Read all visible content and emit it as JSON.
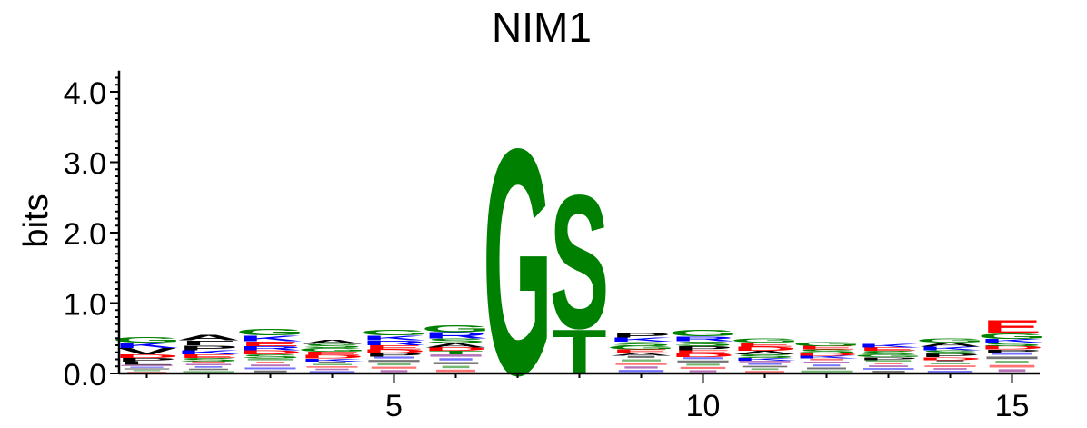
{
  "chart_data": {
    "type": "sequence-logo",
    "title": "NIM1",
    "ylabel": "bits",
    "xlabel": "",
    "ylim": [
      0,
      4.3
    ],
    "ytick_labels": [
      "0.0",
      "1.0",
      "2.0",
      "3.0",
      "4.0"
    ],
    "yticks": [
      0,
      1,
      2,
      3,
      4
    ],
    "xtick_labels": [
      "5",
      "10",
      "15"
    ],
    "xticks": [
      5,
      10,
      15
    ],
    "positions": [
      1,
      2,
      3,
      4,
      5,
      6,
      7,
      8,
      9,
      10,
      11,
      12,
      13,
      14,
      15
    ],
    "colors": {
      "G": "#008000",
      "S": "#008000",
      "T": "#008000",
      "C": "#008000",
      "Y": "#008000",
      "N": "#800080",
      "Q": "#800080",
      "K": "#0000ff",
      "R": "#0000ff",
      "H": "#0000ff",
      "D": "#ff0000",
      "E": "#ff0000",
      "A": "#000000",
      "V": "#000000",
      "L": "#000000",
      "I": "#000000",
      "P": "#000000",
      "F": "#000000",
      "M": "#000000",
      "W": "#000000"
    },
    "columns": [
      {
        "position": 1,
        "total_bits": 0.52,
        "letters": [
          {
            "letter": "L",
            "bits": 0.05
          },
          {
            "letter": "P",
            "bits": 0.05
          },
          {
            "letter": "D",
            "bits": 0.05
          },
          {
            "letter": "V",
            "bits": 0.09
          },
          {
            "letter": "K",
            "bits": 0.08
          },
          {
            "letter": "G",
            "bits": 0.08
          }
        ]
      },
      {
        "position": 2,
        "total_bits": 0.55,
        "letters": [
          {
            "letter": "S",
            "bits": 0.05
          },
          {
            "letter": "E",
            "bits": 0.05
          },
          {
            "letter": "K",
            "bits": 0.06
          },
          {
            "letter": "P",
            "bits": 0.07
          },
          {
            "letter": "F",
            "bits": 0.07
          },
          {
            "letter": "A",
            "bits": 0.08
          }
        ]
      },
      {
        "position": 3,
        "total_bits": 0.63,
        "letters": [
          {
            "letter": "S",
            "bits": 0.06
          },
          {
            "letter": "D",
            "bits": 0.06
          },
          {
            "letter": "R",
            "bits": 0.06
          },
          {
            "letter": "E",
            "bits": 0.07
          },
          {
            "letter": "K",
            "bits": 0.08
          },
          {
            "letter": "G",
            "bits": 0.09
          }
        ]
      },
      {
        "position": 4,
        "total_bits": 0.48,
        "letters": [
          {
            "letter": "K",
            "bits": 0.04
          },
          {
            "letter": "D",
            "bits": 0.05
          },
          {
            "letter": "E",
            "bits": 0.05
          },
          {
            "letter": "G",
            "bits": 0.05
          },
          {
            "letter": "S",
            "bits": 0.06
          },
          {
            "letter": "A",
            "bits": 0.06
          }
        ]
      },
      {
        "position": 5,
        "total_bits": 0.62,
        "letters": [
          {
            "letter": "P",
            "bits": 0.05
          },
          {
            "letter": "D",
            "bits": 0.05
          },
          {
            "letter": "E",
            "bits": 0.06
          },
          {
            "letter": "R",
            "bits": 0.07
          },
          {
            "letter": "K",
            "bits": 0.07
          },
          {
            "letter": "G",
            "bits": 0.08
          }
        ]
      },
      {
        "position": 6,
        "total_bits": 0.69,
        "letters": [
          {
            "letter": "T",
            "bits": 0.05
          },
          {
            "letter": "D",
            "bits": 0.05
          },
          {
            "letter": "A",
            "bits": 0.06
          },
          {
            "letter": "S",
            "bits": 0.07
          },
          {
            "letter": "R",
            "bits": 0.09
          },
          {
            "letter": "G",
            "bits": 0.1
          }
        ]
      },
      {
        "position": 7,
        "total_bits": 3.3,
        "letters": [
          {
            "letter": "G",
            "bits": 3.3
          }
        ]
      },
      {
        "position": 8,
        "total_bits": 2.6,
        "letters": [
          {
            "letter": "T",
            "bits": 0.65
          },
          {
            "letter": "S",
            "bits": 1.95
          }
        ]
      },
      {
        "position": 9,
        "total_bits": 0.58,
        "letters": [
          {
            "letter": "A",
            "bits": 0.04
          },
          {
            "letter": "E",
            "bits": 0.05
          },
          {
            "letter": "G",
            "bits": 0.05
          },
          {
            "letter": "S",
            "bits": 0.06
          },
          {
            "letter": "K",
            "bits": 0.06
          },
          {
            "letter": "P",
            "bits": 0.07
          }
        ]
      },
      {
        "position": 10,
        "total_bits": 0.62,
        "letters": [
          {
            "letter": "D",
            "bits": 0.05
          },
          {
            "letter": "E",
            "bits": 0.05
          },
          {
            "letter": "P",
            "bits": 0.06
          },
          {
            "letter": "S",
            "bits": 0.07
          },
          {
            "letter": "R",
            "bits": 0.07
          },
          {
            "letter": "G",
            "bits": 0.09
          }
        ]
      },
      {
        "position": 11,
        "total_bits": 0.5,
        "letters": [
          {
            "letter": "K",
            "bits": 0.04
          },
          {
            "letter": "S",
            "bits": 0.05
          },
          {
            "letter": "A",
            "bits": 0.05
          },
          {
            "letter": "D",
            "bits": 0.06
          },
          {
            "letter": "E",
            "bits": 0.06
          },
          {
            "letter": "G",
            "bits": 0.06
          }
        ]
      },
      {
        "position": 12,
        "total_bits": 0.45,
        "letters": [
          {
            "letter": "K",
            "bits": 0.04
          },
          {
            "letter": "D",
            "bits": 0.04
          },
          {
            "letter": "S",
            "bits": 0.05
          },
          {
            "letter": "E",
            "bits": 0.05
          },
          {
            "letter": "G",
            "bits": 0.06
          }
        ]
      },
      {
        "position": 13,
        "total_bits": 0.42,
        "letters": [
          {
            "letter": "P",
            "bits": 0.04
          },
          {
            "letter": "G",
            "bits": 0.04
          },
          {
            "letter": "S",
            "bits": 0.05
          },
          {
            "letter": "E",
            "bits": 0.05
          },
          {
            "letter": "K",
            "bits": 0.05
          }
        ]
      },
      {
        "position": 14,
        "total_bits": 0.5,
        "letters": [
          {
            "letter": "D",
            "bits": 0.04
          },
          {
            "letter": "P",
            "bits": 0.05
          },
          {
            "letter": "S",
            "bits": 0.05
          },
          {
            "letter": "K",
            "bits": 0.05
          },
          {
            "letter": "A",
            "bits": 0.06
          },
          {
            "letter": "G",
            "bits": 0.06
          }
        ]
      },
      {
        "position": 15,
        "total_bits": 0.77,
        "letters": [
          {
            "letter": "P",
            "bits": 0.04
          },
          {
            "letter": "D",
            "bits": 0.05
          },
          {
            "letter": "S",
            "bits": 0.05
          },
          {
            "letter": "K",
            "bits": 0.05
          },
          {
            "letter": "G",
            "bits": 0.08
          },
          {
            "letter": "E",
            "bits": 0.2
          }
        ]
      }
    ]
  }
}
